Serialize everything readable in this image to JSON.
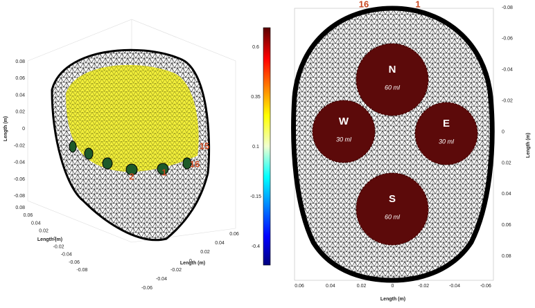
{
  "left_plot": {
    "z_axis": {
      "label": "Length (m)",
      "ticks": [
        "0.08",
        "0.06",
        "0.04",
        "0.02",
        "0",
        "-0.02",
        "-0.04",
        "-0.06",
        "-0.08"
      ]
    },
    "y_axis": {
      "label": "Length (m)",
      "ticks": [
        "0.08",
        "0.06",
        "0.04",
        "0.02",
        "0",
        "-0.02",
        "-0.04",
        "-0.06",
        "-0.08"
      ]
    },
    "x_axis": {
      "label": "Length (m)",
      "ticks": [
        "-0.06",
        "-0.04",
        "-0.02",
        "0",
        "0.02",
        "0.04",
        "0.06"
      ]
    },
    "electrodes": [
      "15",
      "16",
      "2",
      "1"
    ]
  },
  "colorbar": {
    "ticks": [
      "0.6",
      "0.35",
      "0.1",
      "-0.15",
      "-0.4"
    ]
  },
  "right_plot": {
    "y_axis": {
      "label": "Length (m)",
      "ticks": [
        "-0.08",
        "-0.06",
        "-0.04",
        "-0.02",
        "0",
        "0.02",
        "0.04",
        "0.06",
        "0.08"
      ]
    },
    "x_axis": {
      "label": "Length (m)",
      "ticks": [
        "0.06",
        "0.04",
        "0.02",
        "0",
        "-0.02",
        "-0.04",
        "-0.06"
      ]
    },
    "electrodes": [
      "16",
      "1"
    ],
    "regions": [
      {
        "label": "N",
        "volume": "60 ml"
      },
      {
        "label": "W",
        "volume": "30 ml"
      },
      {
        "label": "E",
        "volume": "30 ml"
      },
      {
        "label": "S",
        "volume": "60 ml"
      }
    ]
  }
}
